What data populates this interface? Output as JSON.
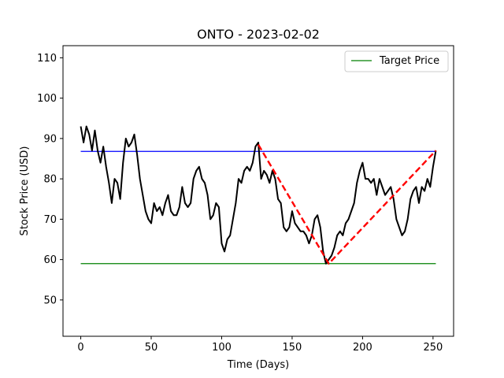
{
  "chart_data": {
    "type": "line",
    "title": "ONTO - 2023-02-02",
    "xlabel": "Time (Days)",
    "ylabel": "Stock Price (USD)",
    "xlim": [
      -12.6,
      264.6
    ],
    "ylim": [
      41,
      113
    ],
    "xticks": [
      0,
      50,
      100,
      150,
      200,
      250
    ],
    "yticks": [
      50,
      60,
      70,
      80,
      90,
      100,
      110
    ],
    "grid": false,
    "legend": {
      "placement": "top-right",
      "entries": [
        "Target Price"
      ]
    },
    "colors": {
      "price": "#000000",
      "target": "#008000",
      "level": "#0000ff",
      "pattern": "#ff0000"
    },
    "series": [
      {
        "name": "",
        "kind": "price",
        "x": [
          0,
          2,
          4,
          6,
          8,
          10,
          12,
          14,
          16,
          18,
          20,
          22,
          24,
          26,
          28,
          30,
          32,
          34,
          36,
          38,
          40,
          42,
          44,
          46,
          48,
          50,
          52,
          54,
          56,
          58,
          60,
          62,
          64,
          66,
          68,
          70,
          72,
          74,
          76,
          78,
          80,
          82,
          84,
          86,
          88,
          90,
          92,
          94,
          96,
          98,
          100,
          102,
          104,
          106,
          108,
          110,
          112,
          114,
          116,
          118,
          120,
          122,
          124,
          126,
          128,
          130,
          132,
          134,
          136,
          138,
          140,
          142,
          144,
          146,
          148,
          150,
          152,
          154,
          156,
          158,
          160,
          162,
          164,
          166,
          168,
          170,
          172,
          174,
          176,
          178,
          180,
          182,
          184,
          186,
          188,
          190,
          192,
          194,
          196,
          198,
          200,
          202,
          204,
          206,
          208,
          210,
          212,
          214,
          216,
          218,
          220,
          222,
          224,
          226,
          228,
          230,
          232,
          234,
          236,
          238,
          240,
          242,
          244,
          246,
          248,
          250,
          252
        ],
        "values": [
          93,
          89,
          93,
          91,
          87,
          92,
          87,
          84,
          88,
          83,
          79,
          74,
          80,
          79,
          75,
          84,
          90,
          88,
          89,
          91,
          86,
          80,
          76,
          72,
          70,
          69,
          74,
          72,
          73,
          71,
          74,
          76,
          72,
          71,
          71,
          73,
          78,
          74,
          73,
          74,
          80,
          82,
          83,
          80,
          79,
          76,
          70,
          71,
          74,
          73,
          64,
          62,
          65,
          66,
          70,
          74,
          80,
          79,
          82,
          83,
          82,
          84,
          88,
          89,
          80,
          82,
          81,
          79,
          82,
          80,
          75,
          74,
          68,
          67,
          68,
          72,
          69,
          68,
          67,
          67,
          66,
          64,
          66,
          70,
          71,
          68,
          62,
          59,
          60,
          61,
          63,
          66,
          67,
          66,
          69,
          70,
          72,
          74,
          79,
          82,
          84,
          80,
          80,
          79,
          80,
          76,
          80,
          78,
          76,
          77,
          78,
          75,
          70,
          68,
          66,
          67,
          70,
          75,
          77,
          78,
          74,
          78,
          77,
          80,
          78,
          83,
          87
        ]
      },
      {
        "name": "Target Price",
        "kind": "target",
        "x": [
          0,
          252
        ],
        "values": [
          59,
          59
        ]
      },
      {
        "name": "",
        "kind": "level",
        "x": [
          0,
          252
        ],
        "values": [
          86.8,
          86.8
        ]
      },
      {
        "name": "",
        "kind": "pattern",
        "x": [
          126,
          176,
          252
        ],
        "values": [
          88.5,
          59,
          87
        ]
      }
    ]
  }
}
